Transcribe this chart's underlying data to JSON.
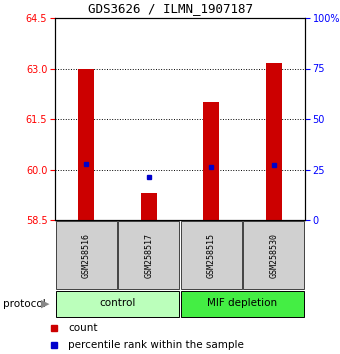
{
  "title": "GDS3626 / ILMN_1907187",
  "samples": [
    "GSM258516",
    "GSM258517",
    "GSM258515",
    "GSM258530"
  ],
  "bar_bottoms": [
    58.5,
    58.5,
    58.5,
    58.5
  ],
  "bar_tops": [
    63.0,
    59.3,
    62.0,
    63.15
  ],
  "blue_y": [
    60.15,
    59.78,
    60.08,
    60.13
  ],
  "ylim_left": [
    58.5,
    64.5
  ],
  "yticks_left": [
    58.5,
    60.0,
    61.5,
    63.0,
    64.5
  ],
  "yticks_right": [
    0,
    25,
    50,
    75,
    100
  ],
  "ylim_right": [
    0,
    100
  ],
  "bar_color": "#cc0000",
  "blue_color": "#0000cc",
  "bar_width": 0.25,
  "groups": [
    {
      "label": "control",
      "samples": [
        0,
        1
      ],
      "color": "#bbffbb"
    },
    {
      "label": "MIF depletion",
      "samples": [
        2,
        3
      ],
      "color": "#44ee44"
    }
  ],
  "background_color": "#ffffff",
  "plot_bg": "#ffffff",
  "grid_lines": [
    60.0,
    61.5,
    63.0
  ],
  "title_fontsize": 9,
  "tick_fontsize": 7,
  "sample_box_color": "#c8c8c8",
  "legend_red_label": "count",
  "legend_blue_label": "percentile rank within the sample"
}
